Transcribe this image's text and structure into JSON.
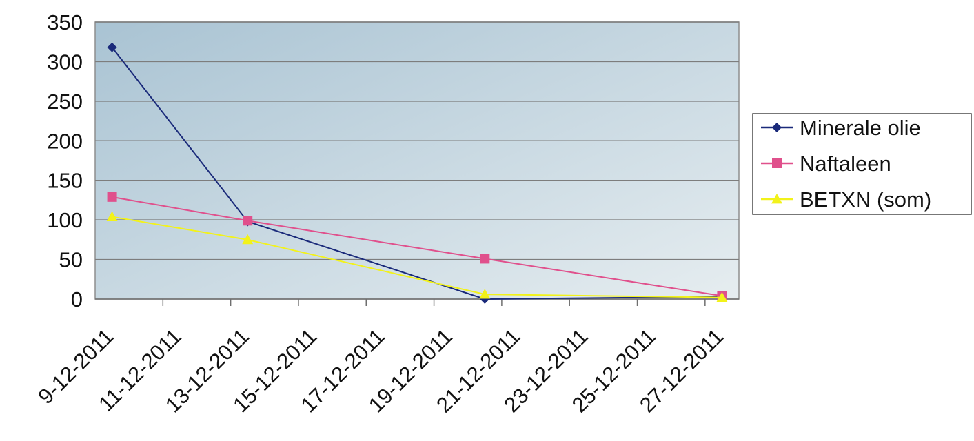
{
  "chart_data": {
    "type": "line",
    "title": "",
    "xlabel": "",
    "ylabel": "",
    "ylim": [
      0,
      350
    ],
    "yticks": [
      0,
      50,
      100,
      150,
      200,
      250,
      300,
      350
    ],
    "xticks": [
      "9-12-2011",
      "11-12-2011",
      "13-12-2011",
      "15-12-2011",
      "17-12-2011",
      "19-12-2011",
      "21-12-2011",
      "23-12-2011",
      "25-12-2011",
      "27-12-2011"
    ],
    "xlim": [
      "2011-12-09",
      "2011-12-28"
    ],
    "grid": "horizontal",
    "legend": "right",
    "series": [
      {
        "name": "Minerale olie",
        "color": "#1a2a7a",
        "marker": "diamond",
        "points": [
          {
            "x": "2011-12-09",
            "y": 318
          },
          {
            "x": "2011-12-13",
            "y": 98
          },
          {
            "x": "2011-12-20",
            "y": 0
          },
          {
            "x": "2011-12-27",
            "y": 3
          }
        ]
      },
      {
        "name": "Naftaleen",
        "color": "#e0508c",
        "marker": "square",
        "points": [
          {
            "x": "2011-12-09",
            "y": 129
          },
          {
            "x": "2011-12-13",
            "y": 99
          },
          {
            "x": "2011-12-20",
            "y": 51
          },
          {
            "x": "2011-12-27",
            "y": 4
          }
        ]
      },
      {
        "name": "BETXN (som)",
        "color": "#f2f21a",
        "marker": "triangle",
        "points": [
          {
            "x": "2011-12-09",
            "y": 104
          },
          {
            "x": "2011-12-13",
            "y": 75
          },
          {
            "x": "2011-12-20",
            "y": 6
          },
          {
            "x": "2011-12-27",
            "y": 2
          }
        ]
      }
    ]
  }
}
